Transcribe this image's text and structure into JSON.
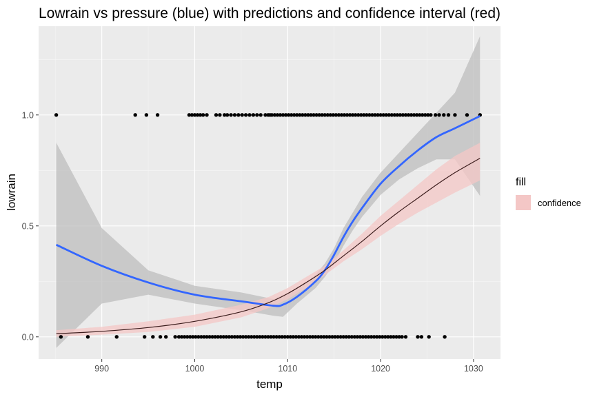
{
  "chart_data": {
    "type": "scatter",
    "title": "Lowrain vs pressure (blue) with predictions and confidence interval (red)",
    "xlabel": "temp",
    "ylabel": "lowrain",
    "xlim": [
      983.2,
      1032.9
    ],
    "ylim": [
      -0.1,
      1.4
    ],
    "x_ticks": [
      990,
      1000,
      1010,
      1020,
      1030
    ],
    "x_tick_labels": [
      "990",
      "1000",
      "1010",
      "1020",
      "1030"
    ],
    "y_ticks": [
      0.0,
      0.5,
      1.0
    ],
    "y_tick_labels": [
      "0.0",
      "0.5",
      "1.0"
    ],
    "grid": true,
    "legend": {
      "title": "fill",
      "placement": "right",
      "entries": [
        {
          "label": "confidence",
          "color": "#f4c7c6"
        }
      ]
    },
    "points_y1": [
      985.1,
      993.6,
      994.8,
      996.0,
      999.4,
      999.7,
      1000.0,
      1000.3,
      1000.6,
      1000.9,
      1001.3,
      1002.3,
      1002.7,
      1003.2,
      1003.5,
      1003.9,
      1004.3,
      1004.7,
      1005.1,
      1005.5,
      1005.9,
      1006.3,
      1006.7,
      1007.1,
      1007.6,
      1007.9,
      1008.1,
      1008.3,
      1008.6,
      1008.9,
      1009.2,
      1009.5,
      1009.8,
      1010.1,
      1010.4,
      1010.7,
      1011.0,
      1011.3,
      1011.6,
      1011.9,
      1012.2,
      1012.5,
      1012.8,
      1013.1,
      1013.4,
      1013.7,
      1014.0,
      1014.3,
      1014.6,
      1014.9,
      1015.2,
      1015.5,
      1015.8,
      1016.1,
      1016.4,
      1016.7,
      1017.0,
      1017.3,
      1017.6,
      1017.9,
      1018.2,
      1018.5,
      1018.8,
      1019.1,
      1019.4,
      1019.7,
      1020.0,
      1020.3,
      1020.6,
      1020.9,
      1021.2,
      1021.5,
      1021.8,
      1022.1,
      1022.4,
      1022.7,
      1023.0,
      1023.3,
      1023.6,
      1023.9,
      1024.2,
      1024.5,
      1024.8,
      1025.1,
      1025.4,
      1025.9,
      1026.3,
      1026.8,
      1027.3,
      1028.0,
      1029.3,
      1030.7
    ],
    "points_y0": [
      985.6,
      988.5,
      991.6,
      994.6,
      995.5,
      996.3,
      996.9,
      997.9,
      998.3,
      998.6,
      998.9,
      999.2,
      999.5,
      999.8,
      1000.1,
      1000.4,
      1000.7,
      1001.0,
      1001.3,
      1001.6,
      1001.9,
      1002.2,
      1002.5,
      1002.8,
      1003.1,
      1003.4,
      1003.7,
      1004.0,
      1004.3,
      1004.6,
      1004.9,
      1005.2,
      1005.5,
      1005.8,
      1006.1,
      1006.4,
      1006.7,
      1007.0,
      1007.3,
      1007.6,
      1007.9,
      1008.2,
      1008.5,
      1008.8,
      1009.1,
      1009.4,
      1009.7,
      1010.0,
      1010.3,
      1010.6,
      1010.9,
      1011.2,
      1011.5,
      1011.8,
      1012.1,
      1012.4,
      1012.7,
      1013.0,
      1013.3,
      1013.6,
      1013.9,
      1014.2,
      1014.5,
      1014.8,
      1015.1,
      1015.4,
      1015.7,
      1016.0,
      1016.3,
      1016.6,
      1016.9,
      1017.2,
      1017.5,
      1017.8,
      1018.1,
      1018.4,
      1018.7,
      1019.0,
      1019.3,
      1019.6,
      1019.9,
      1020.2,
      1020.5,
      1020.8,
      1021.1,
      1021.4,
      1021.7,
      1022.0,
      1022.3,
      1022.7,
      1024.0,
      1024.4,
      1025.2,
      1026.9
    ],
    "series": [
      {
        "role": "smooth",
        "color": "#3366ff",
        "x": [
          985.1,
          990,
          995,
          1000,
          1005,
          1008.5,
          1009.5,
          1011,
          1013,
          1014,
          1015,
          1016,
          1017,
          1018,
          1020,
          1022,
          1024,
          1026,
          1028,
          1030.7
        ],
        "y": [
          0.415,
          0.32,
          0.245,
          0.19,
          0.16,
          0.14,
          0.145,
          0.18,
          0.25,
          0.3,
          0.37,
          0.45,
          0.52,
          0.58,
          0.69,
          0.77,
          0.84,
          0.9,
          0.94,
          0.995
        ],
        "band_lower": [
          -0.05,
          0.15,
          0.19,
          0.15,
          0.12,
          0.095,
          0.09,
          0.15,
          0.22,
          0.27,
          0.33,
          0.41,
          0.48,
          0.54,
          0.64,
          0.71,
          0.76,
          0.8,
          0.8,
          0.635
        ],
        "band_upper": [
          0.875,
          0.49,
          0.3,
          0.23,
          0.2,
          0.17,
          0.19,
          0.21,
          0.28,
          0.33,
          0.4,
          0.49,
          0.56,
          0.63,
          0.74,
          0.83,
          0.92,
          1.01,
          1.1,
          1.355
        ],
        "band_color": "#bdbdbd"
      },
      {
        "role": "prediction",
        "color": "#3b1c1c",
        "x": [
          985.1,
          990,
          995,
          1000,
          1005,
          1008,
          1010,
          1012,
          1014,
          1016,
          1018,
          1020,
          1022,
          1024,
          1026,
          1028,
          1030.7
        ],
        "y": [
          0.014,
          0.025,
          0.042,
          0.07,
          0.113,
          0.155,
          0.195,
          0.245,
          0.3,
          0.365,
          0.43,
          0.5,
          0.565,
          0.625,
          0.685,
          0.74,
          0.805
        ],
        "band_lower": [
          0.0,
          0.01,
          0.022,
          0.045,
          0.088,
          0.13,
          0.17,
          0.22,
          0.278,
          0.34,
          0.395,
          0.455,
          0.51,
          0.56,
          0.605,
          0.65,
          0.705
        ],
        "band_upper": [
          0.03,
          0.045,
          0.07,
          0.1,
          0.145,
          0.18,
          0.22,
          0.27,
          0.32,
          0.39,
          0.465,
          0.545,
          0.615,
          0.685,
          0.755,
          0.815,
          0.875
        ],
        "band_color": "#f4c7c6"
      }
    ]
  }
}
